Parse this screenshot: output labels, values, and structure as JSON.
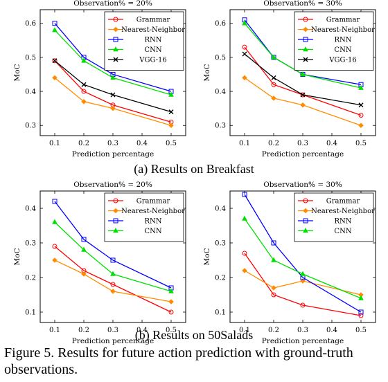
{
  "figure_caption": "Figure 5. Results for future action prediction with ground-truth observations.",
  "subcaptions": [
    "(a) Results on Breakfast",
    "(b) Results on 50Salads"
  ],
  "colors": {
    "Grammar": "#ff0000",
    "Nearest-Neighbor": "#ff8c00",
    "RNN": "#0000ff",
    "CNN": "#00e000",
    "VGG-16": "#000000"
  },
  "chart_data": [
    {
      "type": "line",
      "title": "Observation% = 20%",
      "xlabel": "Prediction percentage",
      "ylabel": "MoC",
      "x": [
        0.1,
        0.2,
        0.3,
        0.5
      ],
      "xlim": [
        0.05,
        0.55
      ],
      "ylim": [
        0.27,
        0.64
      ],
      "xticks": [
        0.1,
        0.2,
        0.3,
        0.4,
        0.5
      ],
      "yticks": [
        0.3,
        0.4,
        0.5,
        0.6
      ],
      "legend": "top-right",
      "series": [
        {
          "name": "Grammar",
          "values": [
            0.49,
            0.4,
            0.36,
            0.31
          ]
        },
        {
          "name": "Nearest-Neighbor",
          "values": [
            0.44,
            0.37,
            0.35,
            0.3
          ]
        },
        {
          "name": "RNN",
          "values": [
            0.6,
            0.5,
            0.45,
            0.4
          ]
        },
        {
          "name": "CNN",
          "values": [
            0.58,
            0.49,
            0.44,
            0.39
          ]
        },
        {
          "name": "VGG-16",
          "values": [
            0.49,
            0.42,
            0.39,
            0.34
          ]
        }
      ]
    },
    {
      "type": "line",
      "title": "Observation% = 30%",
      "xlabel": "Prediction percentage",
      "ylabel": "MoC",
      "x": [
        0.1,
        0.2,
        0.3,
        0.5
      ],
      "xlim": [
        0.05,
        0.55
      ],
      "ylim": [
        0.27,
        0.64
      ],
      "xticks": [
        0.1,
        0.2,
        0.3,
        0.4,
        0.5
      ],
      "yticks": [
        0.3,
        0.4,
        0.5,
        0.6
      ],
      "legend": "top-right",
      "series": [
        {
          "name": "Grammar",
          "values": [
            0.53,
            0.42,
            0.39,
            0.33
          ]
        },
        {
          "name": "Nearest-Neighbor",
          "values": [
            0.44,
            0.38,
            0.36,
            0.3
          ]
        },
        {
          "name": "RNN",
          "values": [
            0.61,
            0.5,
            0.45,
            0.42
          ]
        },
        {
          "name": "CNN",
          "values": [
            0.6,
            0.5,
            0.45,
            0.41
          ]
        },
        {
          "name": "VGG-16",
          "values": [
            0.51,
            0.44,
            0.39,
            0.36
          ]
        }
      ]
    },
    {
      "type": "line",
      "title": "Observation% = 20%",
      "xlabel": "Prediction percentage",
      "ylabel": "MoC",
      "x": [
        0.1,
        0.2,
        0.3,
        0.5
      ],
      "xlim": [
        0.05,
        0.55
      ],
      "ylim": [
        0.07,
        0.45
      ],
      "xticks": [
        0.1,
        0.2,
        0.3,
        0.4,
        0.5
      ],
      "yticks": [
        0.1,
        0.2,
        0.3,
        0.4
      ],
      "legend": "top-right",
      "series": [
        {
          "name": "Grammar",
          "values": [
            0.29,
            0.22,
            0.18,
            0.1
          ]
        },
        {
          "name": "Nearest-Neighbor",
          "values": [
            0.25,
            0.21,
            0.16,
            0.13
          ]
        },
        {
          "name": "RNN",
          "values": [
            0.42,
            0.31,
            0.25,
            0.17
          ]
        },
        {
          "name": "CNN",
          "values": [
            0.36,
            0.28,
            0.21,
            0.16
          ]
        }
      ]
    },
    {
      "type": "line",
      "title": "Observation% = 30%",
      "xlabel": "Prediction percentage",
      "ylabel": "MoC",
      "x": [
        0.1,
        0.2,
        0.3,
        0.5
      ],
      "xlim": [
        0.05,
        0.55
      ],
      "ylim": [
        0.07,
        0.45
      ],
      "xticks": [
        0.1,
        0.2,
        0.3,
        0.4,
        0.5
      ],
      "yticks": [
        0.1,
        0.2,
        0.3,
        0.4
      ],
      "legend": "top-right",
      "series": [
        {
          "name": "Grammar",
          "values": [
            0.27,
            0.15,
            0.12,
            0.09
          ]
        },
        {
          "name": "Nearest-Neighbor",
          "values": [
            0.22,
            0.17,
            0.19,
            0.15
          ]
        },
        {
          "name": "RNN",
          "values": [
            0.44,
            0.3,
            0.2,
            0.1
          ]
        },
        {
          "name": "CNN",
          "values": [
            0.37,
            0.25,
            0.21,
            0.14
          ]
        }
      ]
    }
  ]
}
